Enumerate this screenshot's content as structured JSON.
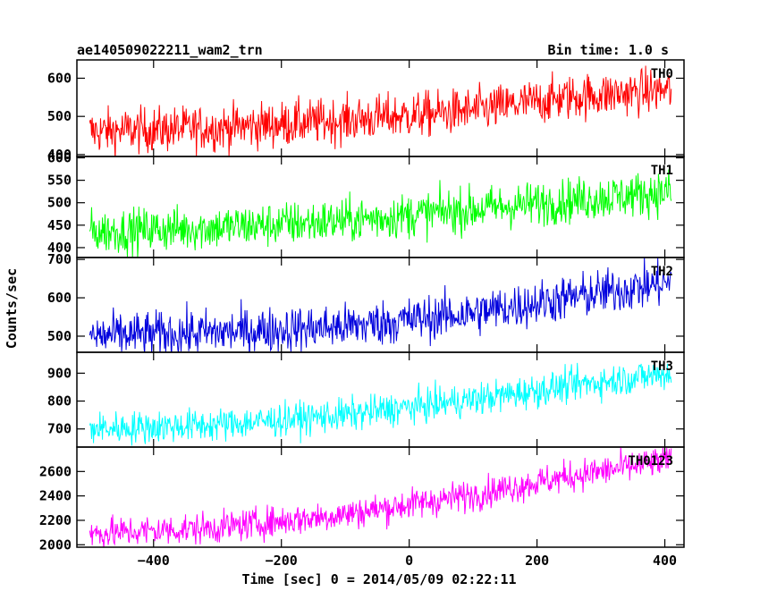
{
  "header": {
    "title": "ae140509022211_wam2_trn",
    "bin_time": "Bin time: 1.0 s"
  },
  "chart_data": {
    "type": "line",
    "xlabel": "Time [sec] 0 = 2014/05/09 02:22:11",
    "ylabel": "Counts/sec",
    "xlim": [
      -520,
      430
    ],
    "x_range": [
      -500,
      410
    ],
    "x_ticks": [
      -400,
      -200,
      0,
      200,
      400
    ],
    "grid": false,
    "panels": [
      {
        "name": "TH0",
        "color": "#ff0000",
        "ylim": [
          395,
          648
        ],
        "y_ticks": [
          400,
          500,
          600
        ],
        "trend": [
          [
            -500,
            460
          ],
          [
            -300,
            470
          ],
          [
            -100,
            490
          ],
          [
            100,
            515
          ],
          [
            250,
            550
          ],
          [
            410,
            570
          ]
        ],
        "noise": 30
      },
      {
        "name": "TH1",
        "color": "#00ff00",
        "ylim": [
          378,
          603
        ],
        "y_ticks": [
          400,
          450,
          500,
          550,
          600
        ],
        "trend": [
          [
            -500,
            435
          ],
          [
            -300,
            445
          ],
          [
            -100,
            460
          ],
          [
            100,
            485
          ],
          [
            250,
            505
          ],
          [
            410,
            525
          ]
        ],
        "noise": 25
      },
      {
        "name": "TH2",
        "color": "#0000dd",
        "ylim": [
          458,
          705
        ],
        "y_ticks": [
          500,
          600,
          700
        ],
        "trend": [
          [
            -500,
            500
          ],
          [
            -300,
            510
          ],
          [
            -100,
            525
          ],
          [
            100,
            560
          ],
          [
            250,
            600
          ],
          [
            410,
            640
          ]
        ],
        "noise": 30
      },
      {
        "name": "TH3",
        "color": "#00ffff",
        "ylim": [
          635,
          975
        ],
        "y_ticks": [
          700,
          800,
          900
        ],
        "trend": [
          [
            -500,
            700
          ],
          [
            -300,
            715
          ],
          [
            -100,
            750
          ],
          [
            100,
            805
          ],
          [
            250,
            855
          ],
          [
            410,
            900
          ]
        ],
        "noise": 30
      },
      {
        "name": "TH0123",
        "color": "#ff00ff",
        "ylim": [
          1980,
          2800
        ],
        "y_ticks": [
          2000,
          2200,
          2400,
          2600
        ],
        "trend": [
          [
            -500,
            2090
          ],
          [
            -300,
            2140
          ],
          [
            -100,
            2250
          ],
          [
            100,
            2410
          ],
          [
            250,
            2560
          ],
          [
            410,
            2690
          ]
        ],
        "noise": 65
      }
    ]
  }
}
